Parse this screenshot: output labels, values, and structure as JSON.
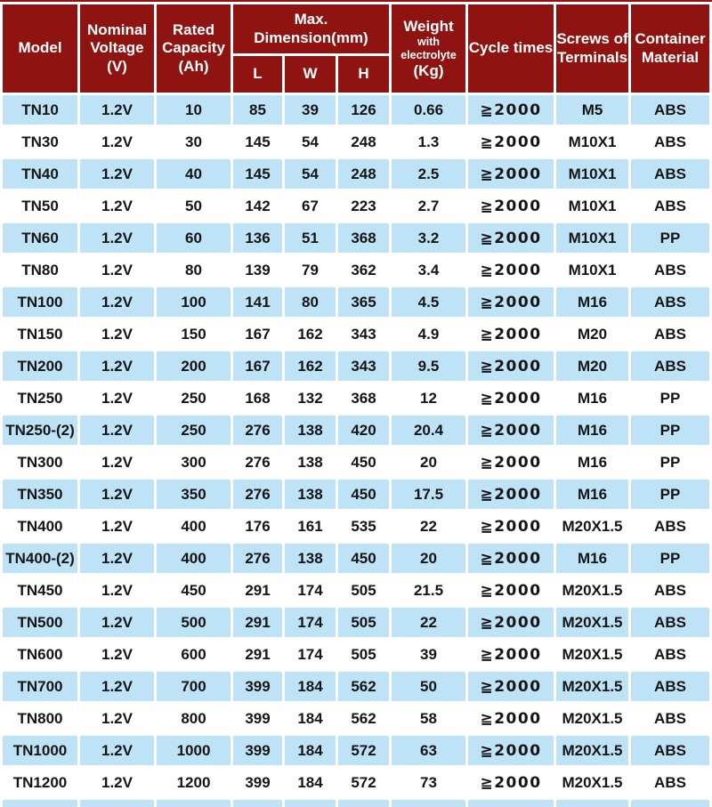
{
  "colors": {
    "header_bg": "#8f1311",
    "header_text": "#ffffff",
    "row_blue": "#bee3f7",
    "row_white": "#ffffff",
    "cell_text": "#151515"
  },
  "table": {
    "header": {
      "model": "Model",
      "nominal_voltage": "Nominal Voltage (V)",
      "rated_capacity": "Rated Capacity (Ah)",
      "max_dimension": "Max. Dimension(mm)",
      "dim_l": "L",
      "dim_w": "W",
      "dim_h": "H",
      "weight_main": "Weight",
      "weight_sub": "with electrolyte",
      "weight_unit": "(Kg)",
      "cycle_times": "Cycle times",
      "screws": "Screws of Terminals",
      "container": "Container Material"
    },
    "rows": [
      [
        "TN10",
        "1.2V",
        "10",
        "85",
        "39",
        "126",
        "0.66",
        "≧2000",
        "M5",
        "ABS"
      ],
      [
        "TN30",
        "1.2V",
        "30",
        "145",
        "54",
        "248",
        "1.3",
        "≧2000",
        "M10X1",
        "ABS"
      ],
      [
        "TN40",
        "1.2V",
        "40",
        "145",
        "54",
        "248",
        "2.5",
        "≧2000",
        "M10X1",
        "ABS"
      ],
      [
        "TN50",
        "1.2V",
        "50",
        "142",
        "67",
        "223",
        "2.7",
        "≧2000",
        "M10X1",
        "ABS"
      ],
      [
        "TN60",
        "1.2V",
        "60",
        "136",
        "51",
        "368",
        "3.2",
        "≧2000",
        "M10X1",
        "PP"
      ],
      [
        "TN80",
        "1.2V",
        "80",
        "139",
        "79",
        "362",
        "3.4",
        "≧2000",
        "M10X1",
        "ABS"
      ],
      [
        "TN100",
        "1.2V",
        "100",
        "141",
        "80",
        "365",
        "4.5",
        "≧2000",
        "M16",
        "ABS"
      ],
      [
        "TN150",
        "1.2V",
        "150",
        "167",
        "162",
        "343",
        "4.9",
        "≧2000",
        "M20",
        "ABS"
      ],
      [
        "TN200",
        "1.2V",
        "200",
        "167",
        "162",
        "343",
        "9.5",
        "≧2000",
        "M20",
        "ABS"
      ],
      [
        "TN250",
        "1.2V",
        "250",
        "168",
        "132",
        "368",
        "12",
        "≧2000",
        "M16",
        "PP"
      ],
      [
        "TN250-(2)",
        "1.2V",
        "250",
        "276",
        "138",
        "420",
        "20.4",
        "≧2000",
        "M16",
        "PP"
      ],
      [
        "TN300",
        "1.2V",
        "300",
        "276",
        "138",
        "450",
        "20",
        "≧2000",
        "M16",
        "PP"
      ],
      [
        "TN350",
        "1.2V",
        "350",
        "276",
        "138",
        "450",
        "17.5",
        "≧2000",
        "M16",
        "PP"
      ],
      [
        "TN400",
        "1.2V",
        "400",
        "176",
        "161",
        "535",
        "22",
        "≧2000",
        "M20X1.5",
        "ABS"
      ],
      [
        "TN400-(2)",
        "1.2V",
        "400",
        "276",
        "138",
        "450",
        "20",
        "≧2000",
        "M16",
        "PP"
      ],
      [
        "TN450",
        "1.2V",
        "450",
        "291",
        "174",
        "505",
        "21.5",
        "≧2000",
        "M20X1.5",
        "ABS"
      ],
      [
        "TN500",
        "1.2V",
        "500",
        "291",
        "174",
        "505",
        "22",
        "≧2000",
        "M20X1.5",
        "ABS"
      ],
      [
        "TN600",
        "1.2V",
        "600",
        "291",
        "174",
        "505",
        "39",
        "≧2000",
        "M20X1.5",
        "ABS"
      ],
      [
        "TN700",
        "1.2V",
        "700",
        "399",
        "184",
        "562",
        "50",
        "≧2000",
        "M20X1.5",
        "ABS"
      ],
      [
        "TN800",
        "1.2V",
        "800",
        "399",
        "184",
        "562",
        "58",
        "≧2000",
        "M20X1.5",
        "ABS"
      ],
      [
        "TN1000",
        "1.2V",
        "1000",
        "399",
        "184",
        "572",
        "63",
        "≧2000",
        "M20X1.5",
        "ABS"
      ],
      [
        "TN1200",
        "1.2V",
        "1200",
        "399",
        "184",
        "572",
        "73",
        "≧2000",
        "M20X1.5",
        "ABS"
      ]
    ]
  }
}
